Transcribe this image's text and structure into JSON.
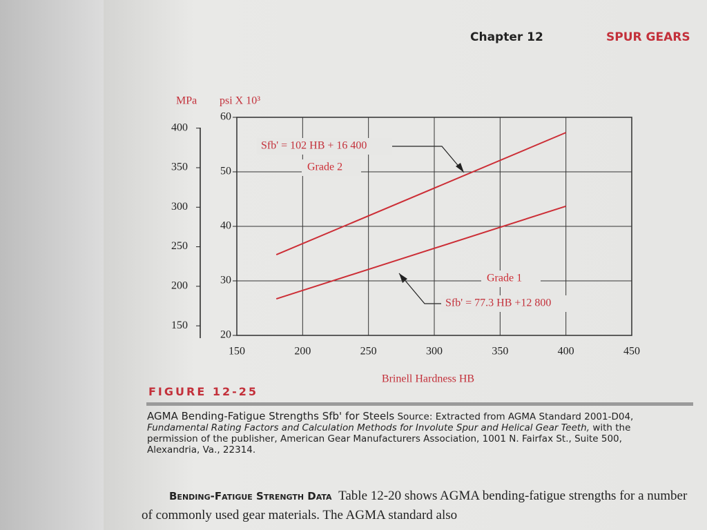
{
  "header": {
    "chapter": "Chapter 12",
    "section": "SPUR GEARS"
  },
  "chart_data": {
    "type": "line",
    "y_label": "psi X 10³",
    "y2_label": "MPa",
    "x_label": "Brinell Hardness  HB",
    "x": [
      180,
      400
    ],
    "series": [
      {
        "name": "Grade 2",
        "color": "#cc2e36",
        "values": [
          34.8,
          57.2
        ]
      },
      {
        "name": "Grade 1",
        "color": "#cc2e36",
        "values": [
          26.7,
          43.7
        ]
      }
    ],
    "annotations": [
      "Sfb' = 102 HB + 16 400",
      "Sfb' = 77.3 HB +12 800"
    ],
    "xlim": [
      150,
      450
    ],
    "xticks": [
      150,
      200,
      250,
      300,
      350,
      400,
      450
    ],
    "ylim": [
      20,
      60
    ],
    "yticks": [
      20,
      30,
      40,
      50,
      60
    ],
    "y2lim": [
      137.9,
      413.7
    ],
    "y2ticks": [
      150,
      200,
      250,
      300,
      350,
      400
    ],
    "grid": true
  },
  "figure": {
    "label": "FIGURE 12-25",
    "caption_title": "AGMA Bending-Fatigue Strengths Sfb' for Steels",
    "caption_source": "Source: Extracted from AGMA Standard 2001-D04,",
    "caption_italic": "Fundamental Rating Factors and Calculation Methods for Involute Spur and Helical Gear Teeth,",
    "caption_rest": "with the permission of the publisher, American Gear Manufacturers Association, 1001 N. Fairfax St., Suite 500, Alexandria, Va., 22314."
  },
  "body": {
    "heading": "Bending-Fatigue Strength Data",
    "text": "Table 12-20 shows AGMA bending-fatigue strengths for a number of commonly used gear materials. The AGMA standard also"
  }
}
